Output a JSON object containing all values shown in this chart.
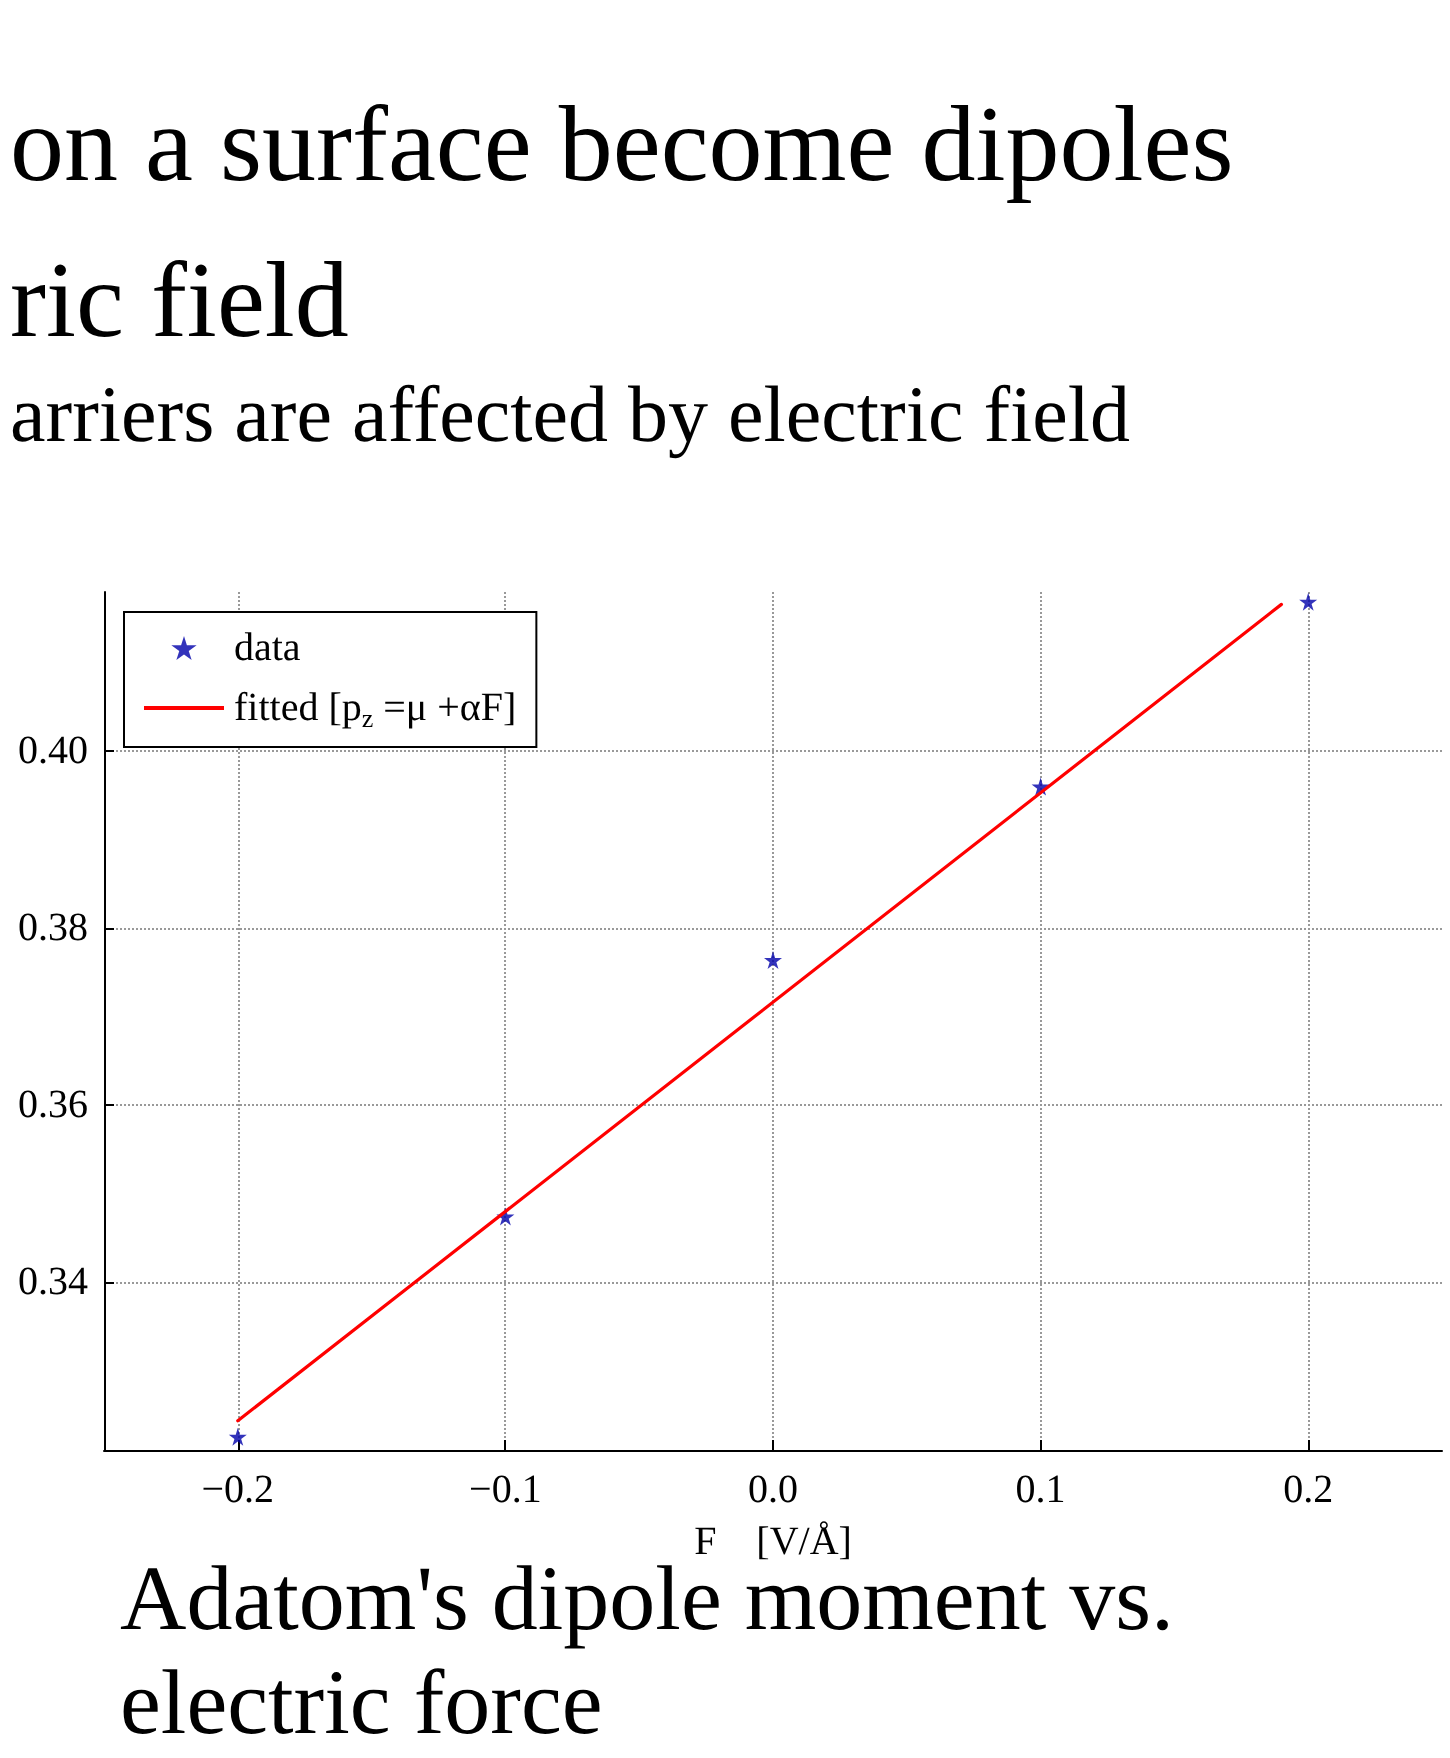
{
  "chart_data": {
    "type": "scatter",
    "title": "on a surface become dipoles ric field",
    "subtitle": "arriers are affected by electric field",
    "xlabel": "F    [V/Å]",
    "annotations": [
      "Adatom's dipole moment vs. electric force"
    ],
    "series": [
      {
        "name": "data",
        "color": "#0000aa",
        "x": [
          -0.2,
          -0.1,
          0.0,
          0.1,
          0.2
        ],
        "values": [
          0.3225,
          0.3474,
          0.3764,
          0.396,
          0.4169
        ]
      },
      {
        "name": "fitted [p$_{z}$ =μ +αF]",
        "type": "line",
        "color": "#ff0000",
        "marker": "none",
        "line_style": "solid",
        "x": [
          -0.2,
          0.19
        ],
        "values": [
          0.3243,
          0.4166
        ]
      }
    ],
    "xlim": [
      -0.25,
      0.25
    ],
    "ylim": [
      0.321,
      0.418
    ],
    "xticks": [
      {
        "value": -0.2,
        "label": "−0.2"
      },
      {
        "value": -0.1,
        "label": "−0.1"
      },
      {
        "value": 0,
        "label": "0.0"
      },
      {
        "value": 0.1,
        "label": "0.1"
      },
      {
        "value": 0.2,
        "label": "0.2"
      }
    ],
    "yticks": [
      {
        "value": 0.34,
        "label": "0.34"
      },
      {
        "value": 0.36,
        "label": "0.36"
      },
      {
        "value": 0.38,
        "label": "0.38"
      },
      {
        "value": 0.4,
        "label": "0.40"
      }
    ],
    "grid": true,
    "legend": "top left",
    "marker": "star"
  }
}
